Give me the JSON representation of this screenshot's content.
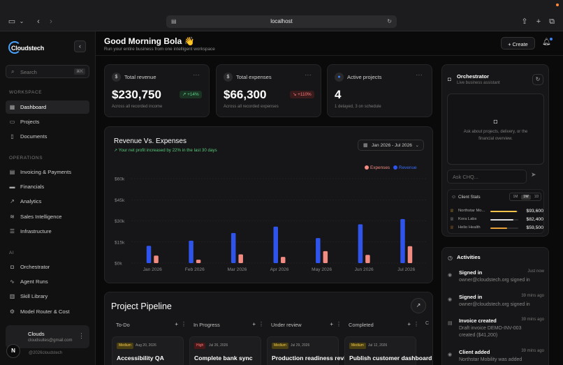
{
  "browser": {
    "url": "localhost"
  },
  "sidebar": {
    "logo": "Cloudstech",
    "search_placeholder": "Search",
    "search_shortcut": "⌘K",
    "sections": {
      "workspace": "WORKSPACE",
      "operations": "OPERATIONS",
      "ai": "AI"
    },
    "items": [
      {
        "label": "Dashboard",
        "icon": "grid-icon"
      },
      {
        "label": "Projects",
        "icon": "folder-icon"
      },
      {
        "label": "Documents",
        "icon": "document-icon"
      },
      {
        "label": "Invoicing & Payments",
        "icon": "invoice-icon"
      },
      {
        "label": "Financials",
        "icon": "wallet-icon"
      },
      {
        "label": "Analytics",
        "icon": "trend-icon"
      },
      {
        "label": "Sales Intelligence",
        "icon": "layers-icon"
      },
      {
        "label": "Infrastructure",
        "icon": "server-icon"
      },
      {
        "label": "Orchestrator",
        "icon": "bot-icon"
      },
      {
        "label": "Agent Runs",
        "icon": "pulse-icon"
      },
      {
        "label": "Skill Library",
        "icon": "book-icon"
      },
      {
        "label": "Model Router & Cost",
        "icon": "router-icon"
      }
    ],
    "user": {
      "name": "Clouds",
      "email": "cloudsuites@gmail.com",
      "avatar_letter": "N"
    },
    "copyright": "@2026cloudstech"
  },
  "header": {
    "greeting": "Good Morning Bola 👋",
    "subtitle": "Run your entire business from one intelligent workspace",
    "create_label": "+ Create"
  },
  "stats": [
    {
      "label": "Total revenue",
      "icon": "$",
      "value": "$230,750",
      "badge": "↗ +14%",
      "badge_type": "up",
      "sub": "Across all recorded income"
    },
    {
      "label": "Total expenses",
      "icon": "$",
      "value": "$66,300",
      "badge": "↘ +110%",
      "badge_type": "down",
      "sub": "Across all recorded expenses"
    },
    {
      "label": "Active projects",
      "icon": "●",
      "value": "4",
      "badge": "",
      "badge_type": "",
      "sub": "1 delayed, 3 on schedule"
    }
  ],
  "chart_card": {
    "title": "Revenue Vs. Expenses",
    "subtitle": "↗  Your net profit increased by 22% in the last 30 days",
    "date_range": "Jan 2026 - Jul 2026",
    "legend_expenses": "Expenses",
    "legend_revenue": "Revenue"
  },
  "chart_data": {
    "type": "bar",
    "categories": [
      "Jan 2026",
      "Feb 2026",
      "Mar 2026",
      "Apr 2026",
      "May 2026",
      "Jun 2026",
      "Jul 2026"
    ],
    "series": [
      {
        "name": "Revenue",
        "color": "#2f54eb",
        "values": [
          12300,
          15900,
          21400,
          25900,
          17800,
          27600,
          31300
        ]
      },
      {
        "name": "Expenses",
        "color": "#f28b82",
        "values": [
          5300,
          2400,
          6200,
          4400,
          8500,
          5800,
          12000
        ]
      }
    ],
    "y_ticks": [
      "$0k",
      "$15k",
      "$30k",
      "$45k",
      "$60k"
    ],
    "ylim": [
      0,
      60000
    ]
  },
  "pipeline": {
    "title": "Project Pipeline",
    "columns": [
      {
        "label": "To-Do",
        "tag": "Medium",
        "tag_type": "medium",
        "date": "Aug 20, 2026",
        "task": "Accessibility QA"
      },
      {
        "label": "In Progress",
        "tag": "High",
        "tag_type": "high",
        "date": "Jul 26, 2026",
        "task": "Complete bank sync"
      },
      {
        "label": "Under review",
        "tag": "Medium",
        "tag_type": "medium",
        "date": "Jul 29, 2026",
        "task": "Production readiness review"
      },
      {
        "label": "Completed",
        "tag": "Medium",
        "tag_type": "medium",
        "date": "Jul 12, 2026",
        "task": "Publish customer dashboard"
      }
    ]
  },
  "orchestrator": {
    "title": "Orchestrator",
    "subtitle": "Live business assistant",
    "placeholder_text": "Ask about projects, delivery, or the financial overview.",
    "input_placeholder": "Ask CHQ...",
    "client_stats_title": "Client Stats",
    "ranges": [
      "1M",
      "1W",
      "1D"
    ],
    "active_range": "1W",
    "clients": [
      {
        "name": "Northstar Mo...",
        "value": "$93,600",
        "fill": 0.95,
        "color": "#f5c24a"
      },
      {
        "name": "Kora Labs",
        "value": "$82,400",
        "fill": 0.82,
        "color": "#d9d9d9"
      },
      {
        "name": "Helio Health",
        "value": "$59,500",
        "fill": 0.6,
        "color": "#e8a13a"
      }
    ]
  },
  "activities": {
    "title": "Activities",
    "items": [
      {
        "title": "Signed in",
        "time": "Just now",
        "desc": "owner@cloudstech.org signed in"
      },
      {
        "title": "Signed in",
        "time": "39 mins ago",
        "desc": "owner@cloudstech.org signed in"
      },
      {
        "title": "Invoice created",
        "time": "39 mins ago",
        "desc": "Draft invoice DEMO-INV-003 created ($41,200)"
      },
      {
        "title": "Client added",
        "time": "39 mins ago",
        "desc": "Northstar Mobility was added"
      }
    ]
  }
}
